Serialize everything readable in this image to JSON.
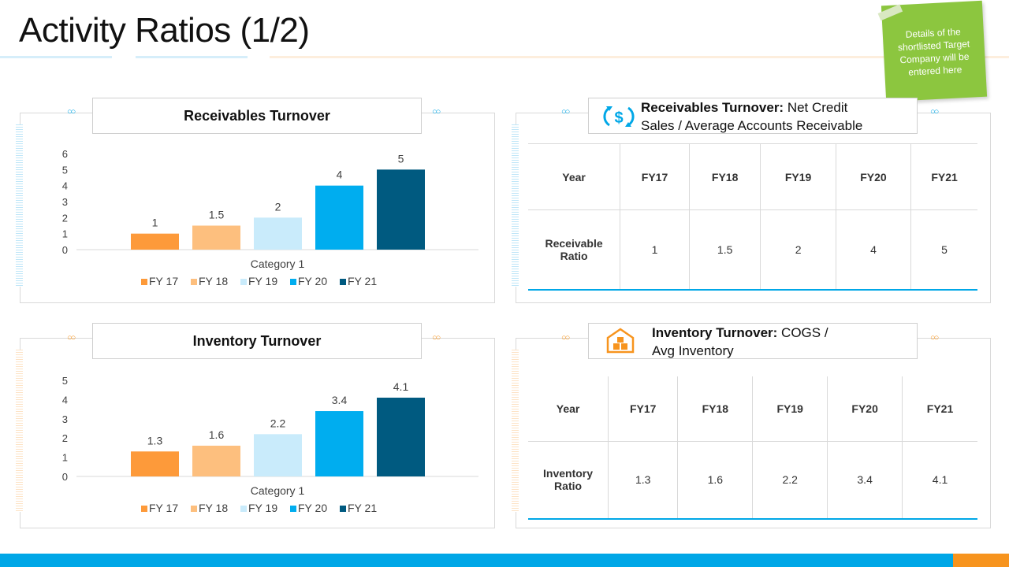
{
  "page": {
    "title": "Activity Ratios (1/2)",
    "sticky_note": "Details of the shortlisted Target Company will be entered here"
  },
  "colors": {
    "fy17": "#fd9a3a",
    "fy18": "#fdbf7e",
    "fy19": "#c9ebfb",
    "fy20": "#00adef",
    "fy21": "#005a80",
    "blue_accent": "#00a7e7",
    "orange_accent": "#f7941e",
    "sticky": "#8cc63f"
  },
  "receivables": {
    "chart_title": "Receivables Turnover",
    "formula_bold": "Receivables Turnover:",
    "formula_line1": " Net Credit",
    "formula_line2": "Sales / Average Accounts Receivable",
    "icon": "dollar-cycle-icon",
    "table": {
      "header": [
        "Year",
        "FY17",
        "FY18",
        "FY19",
        "FY20",
        "FY21"
      ],
      "row_label": [
        "Receivable",
        "Ratio"
      ],
      "values": [
        "1",
        "1.5",
        "2",
        "4",
        "5"
      ]
    }
  },
  "inventory": {
    "chart_title": "Inventory Turnover",
    "formula_bold": "Inventory Turnover:",
    "formula_line1": " COGS /",
    "formula_line2": "Avg Inventory",
    "icon": "warehouse-icon",
    "table": {
      "header": [
        "Year",
        "FY17",
        "FY18",
        "FY19",
        "FY20",
        "FY21"
      ],
      "row_label": [
        "Inventory",
        "Ratio"
      ],
      "values": [
        "1.3",
        "1.6",
        "2.2",
        "3.4",
        "4.1"
      ]
    }
  },
  "chart_data": [
    {
      "type": "bar",
      "title": "Receivables Turnover",
      "categories": [
        "Category 1"
      ],
      "xlabel": "Category 1",
      "ylabel": "",
      "ylim": [
        0,
        6
      ],
      "yticks": [
        "0",
        "1",
        "2",
        "3",
        "4",
        "5",
        "6"
      ],
      "grid": false,
      "legend": "bottom",
      "series": [
        {
          "name": "FY 17",
          "values": [
            1
          ],
          "label": "1"
        },
        {
          "name": "FY 18",
          "values": [
            1.5
          ],
          "label": "1.5"
        },
        {
          "name": "FY 19",
          "values": [
            2
          ],
          "label": "2"
        },
        {
          "name": "FY 20",
          "values": [
            4
          ],
          "label": "4"
        },
        {
          "name": "FY 21",
          "values": [
            5
          ],
          "label": "5"
        }
      ]
    },
    {
      "type": "bar",
      "title": "Inventory Turnover",
      "categories": [
        "Category 1"
      ],
      "xlabel": "Category 1",
      "ylabel": "",
      "ylim": [
        0,
        5
      ],
      "yticks": [
        "0",
        "1",
        "2",
        "3",
        "4",
        "5"
      ],
      "grid": false,
      "legend": "bottom",
      "series": [
        {
          "name": "FY 17",
          "values": [
            1.3
          ],
          "label": "1.3"
        },
        {
          "name": "FY 18",
          "values": [
            1.6
          ],
          "label": "1.6"
        },
        {
          "name": "FY 19",
          "values": [
            2.2
          ],
          "label": "2.2"
        },
        {
          "name": "FY 20",
          "values": [
            3.4
          ],
          "label": "3.4"
        },
        {
          "name": "FY 21",
          "values": [
            4.1
          ],
          "label": "4.1"
        }
      ]
    }
  ]
}
